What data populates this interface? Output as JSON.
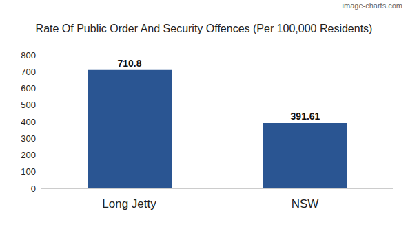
{
  "chart_data": {
    "type": "bar",
    "title": "Rate Of Public Order And Security Offences (Per 100,000 Residents)",
    "annotations": [
      "image-charts.com"
    ],
    "categories": [
      "Long Jetty",
      "NSW"
    ],
    "values": [
      710.8,
      391.61
    ],
    "color": "#2a5592",
    "ylim": [
      0,
      800
    ],
    "yticks": [
      0,
      100,
      200,
      300,
      400,
      500,
      600,
      700,
      800
    ],
    "grid": false,
    "data_labels": true
  }
}
